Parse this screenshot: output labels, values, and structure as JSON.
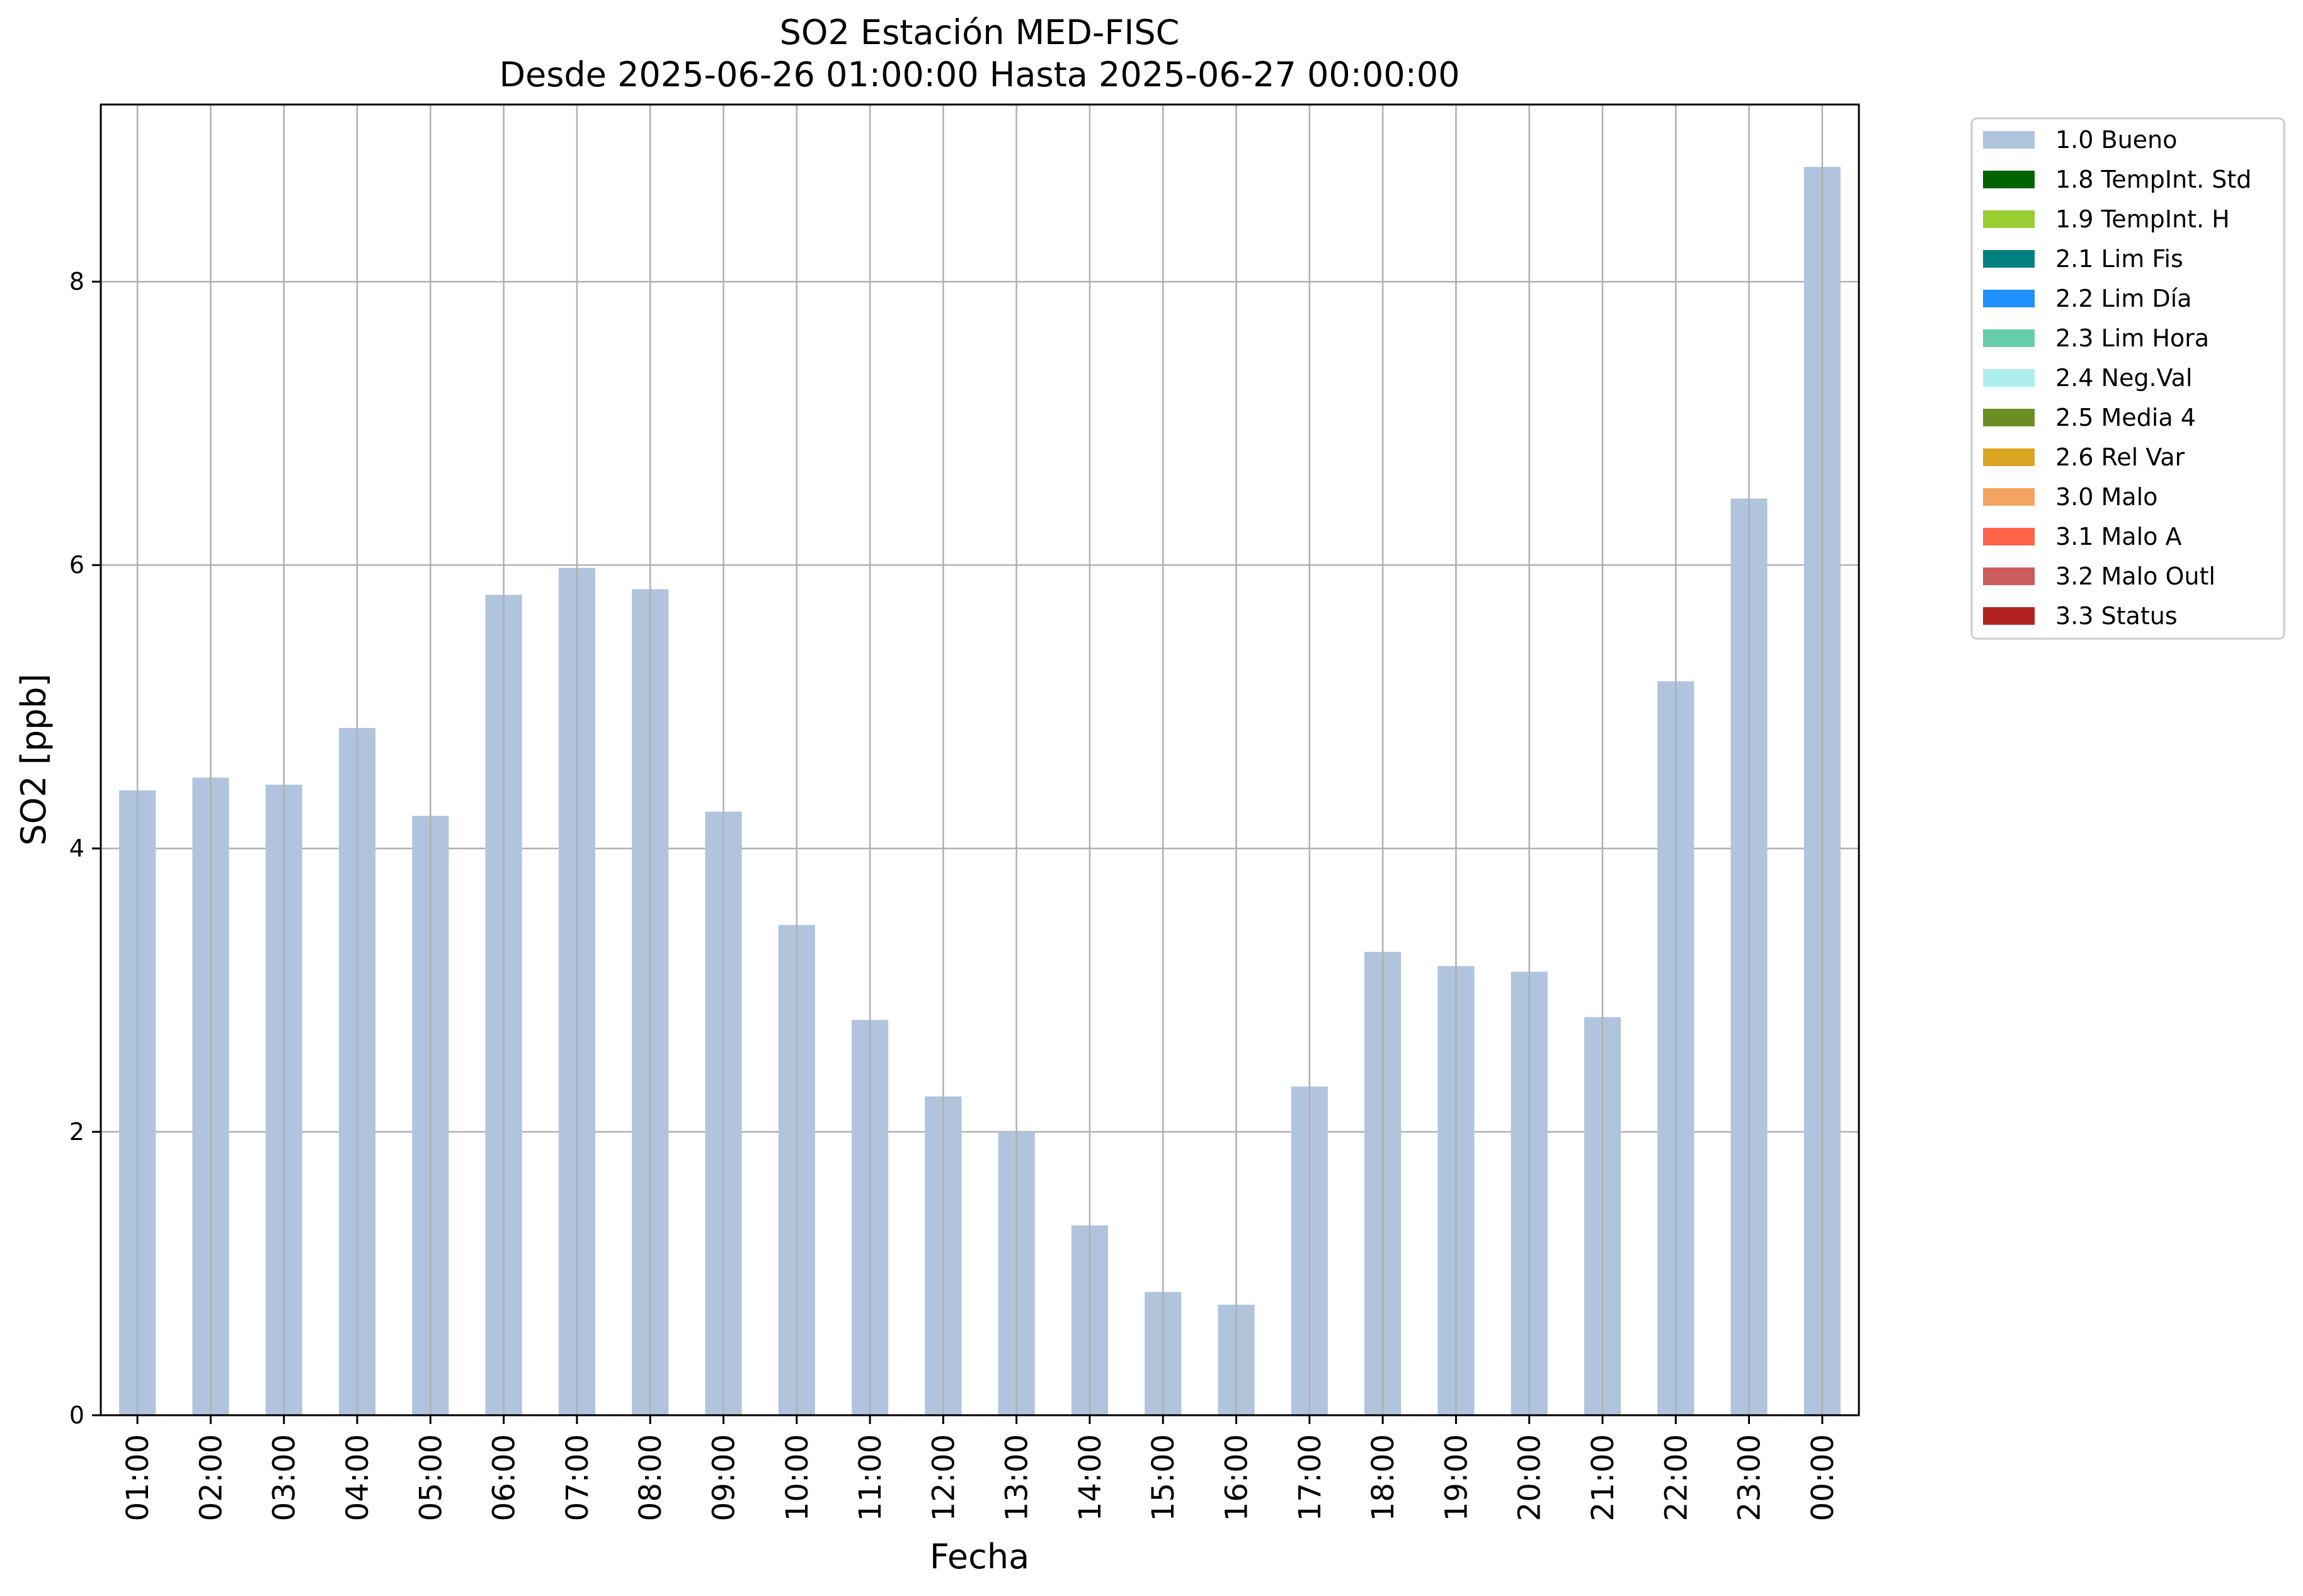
{
  "chart_data": {
    "type": "bar",
    "title": "SO2 Estación MED-FISC",
    "subtitle": "Desde 2025-06-26 01:00:00 Hasta 2025-06-27 00:00:00",
    "xlabel": "Fecha",
    "ylabel": "SO2 [ppb]",
    "ylim": [
      0,
      9.25
    ],
    "yticks": [
      0,
      2,
      4,
      6,
      8
    ],
    "grid": true,
    "legend_position": "outside-top-right",
    "categories": [
      "01:00",
      "02:00",
      "03:00",
      "04:00",
      "05:00",
      "06:00",
      "07:00",
      "08:00",
      "09:00",
      "10:00",
      "11:00",
      "12:00",
      "13:00",
      "14:00",
      "15:00",
      "16:00",
      "17:00",
      "18:00",
      "19:00",
      "20:00",
      "21:00",
      "22:00",
      "23:00",
      "00:00"
    ],
    "series": [
      {
        "name": "1.0 Bueno",
        "color": "#b0c4de",
        "values": [
          4.41,
          4.5,
          4.45,
          4.85,
          4.23,
          5.79,
          5.98,
          5.83,
          4.26,
          3.46,
          2.79,
          2.25,
          2.0,
          1.34,
          0.87,
          0.78,
          2.32,
          3.27,
          3.17,
          3.13,
          2.81,
          5.18,
          6.47,
          8.81
        ]
      }
    ],
    "legend": [
      {
        "label": "1.0 Bueno",
        "color": "#b0c4de"
      },
      {
        "label": "1.8 TempInt. Std",
        "color": "#006400"
      },
      {
        "label": "1.9 TempInt. H",
        "color": "#9acd32"
      },
      {
        "label": "2.1 Lim Fis",
        "color": "#008080"
      },
      {
        "label": "2.2 Lim Día",
        "color": "#1e90ff"
      },
      {
        "label": "2.3 Lim Hora",
        "color": "#66cdaa"
      },
      {
        "label": "2.4 Neg.Val",
        "color": "#afeeee"
      },
      {
        "label": "2.5 Media 4",
        "color": "#6b8e23"
      },
      {
        "label": "2.6 Rel Var",
        "color": "#daa520"
      },
      {
        "label": "3.0 Malo",
        "color": "#f4a460"
      },
      {
        "label": "3.1 Malo A",
        "color": "#ff6347"
      },
      {
        "label": "3.2 Malo Outl",
        "color": "#cd5c5c"
      },
      {
        "label": "3.3 Status",
        "color": "#b22222"
      }
    ]
  }
}
